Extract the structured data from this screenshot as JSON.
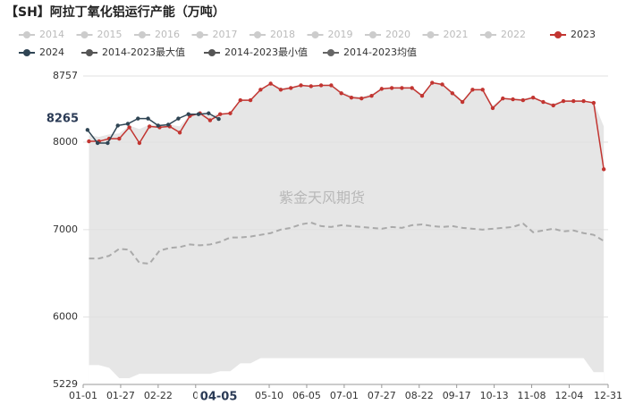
{
  "chart_data": {
    "type": "line",
    "title": "【SH】阿拉丁氧化铝运行产能（万吨）",
    "watermark": "紫金天风期货",
    "xlim": [
      0,
      364
    ],
    "xticks": [
      {
        "value": 0,
        "label": "01-01"
      },
      {
        "value": 26,
        "label": "01-27"
      },
      {
        "value": 52,
        "label": "02-22"
      },
      {
        "value": 78,
        "label": "0"
      },
      {
        "value": 129,
        "label": "05-10"
      },
      {
        "value": 155,
        "label": "06-05"
      },
      {
        "value": 181,
        "label": "07-01"
      },
      {
        "value": 207,
        "label": "07-27"
      },
      {
        "value": 233,
        "label": "08-22"
      },
      {
        "value": 259,
        "label": "09-17"
      },
      {
        "value": 285,
        "label": "10-13"
      },
      {
        "value": 311,
        "label": "11-08"
      },
      {
        "value": 337,
        "label": "12-04"
      },
      {
        "value": 364,
        "label": "12-31"
      }
    ],
    "ylim": [
      5229,
      8757
    ],
    "yticks": [
      5229,
      6000,
      7000,
      8000,
      8757
    ],
    "grid": true,
    "pointer": {
      "x": {
        "value": 94,
        "label": "04-05"
      },
      "y": 8265
    },
    "series": [
      {
        "name": "2014",
        "color": "#cccccc",
        "visible": false
      },
      {
        "name": "2015",
        "color": "#cccccc",
        "visible": false
      },
      {
        "name": "2016",
        "color": "#cccccc",
        "visible": false
      },
      {
        "name": "2017",
        "color": "#cccccc",
        "visible": false
      },
      {
        "name": "2018",
        "color": "#cccccc",
        "visible": false
      },
      {
        "name": "2019",
        "color": "#cccccc",
        "visible": false
      },
      {
        "name": "2020",
        "color": "#cccccc",
        "visible": false
      },
      {
        "name": "2021",
        "color": "#cccccc",
        "visible": false
      },
      {
        "name": "2022",
        "color": "#cccccc",
        "visible": false
      },
      {
        "name": "2023",
        "color": "#c23531",
        "style": "line",
        "x": [
          4,
          11,
          18,
          25,
          32,
          39,
          46,
          53,
          60,
          67,
          74,
          81,
          88,
          95,
          102,
          109,
          116,
          123,
          130,
          137,
          144,
          151,
          158,
          165,
          172,
          179,
          186,
          193,
          200,
          207,
          214,
          221,
          228,
          235,
          242,
          249,
          256,
          263,
          270,
          277,
          284,
          291,
          298,
          305,
          312,
          319,
          326,
          333,
          340,
          347,
          354,
          361
        ],
        "values": [
          8010,
          8010,
          8040,
          8040,
          8170,
          7990,
          8180,
          8170,
          8180,
          8110,
          8300,
          8330,
          8250,
          8320,
          8330,
          8480,
          8480,
          8600,
          8670,
          8600,
          8620,
          8650,
          8640,
          8650,
          8650,
          8560,
          8510,
          8500,
          8530,
          8610,
          8620,
          8620,
          8620,
          8530,
          8680,
          8660,
          8560,
          8460,
          8600,
          8600,
          8390,
          8500,
          8490,
          8480,
          8510,
          8460,
          8420,
          8470,
          8470,
          8470,
          8450,
          7690
        ]
      },
      {
        "name": "2024",
        "color": "#2f4554",
        "style": "line",
        "x": [
          3,
          10,
          17,
          24,
          31,
          38,
          45,
          52,
          59,
          66,
          73,
          80,
          87,
          94
        ],
        "values": [
          8140,
          7990,
          7990,
          8190,
          8210,
          8270,
          8270,
          8190,
          8200,
          8270,
          8320,
          8320,
          8330,
          8265
        ]
      },
      {
        "name": "2014-2023最大值",
        "color": "#555555",
        "style": "area-top",
        "fill": "#e6e6e6",
        "x": [
          4,
          11,
          18,
          25,
          32,
          39,
          46,
          53,
          60,
          67,
          74,
          81,
          88,
          95,
          102,
          109,
          116,
          123,
          130,
          137,
          144,
          151,
          158,
          165,
          172,
          179,
          186,
          193,
          200,
          207,
          214,
          221,
          228,
          235,
          242,
          249,
          256,
          263,
          270,
          277,
          284,
          291,
          298,
          305,
          312,
          319,
          326,
          333,
          340,
          347,
          354,
          361
        ],
        "values": [
          8080,
          8060,
          8090,
          8100,
          8190,
          8150,
          8200,
          8200,
          8200,
          8180,
          8310,
          8340,
          8300,
          8330,
          8340,
          8490,
          8490,
          8610,
          8680,
          8620,
          8630,
          8660,
          8650,
          8660,
          8660,
          8580,
          8530,
          8520,
          8550,
          8620,
          8630,
          8630,
          8630,
          8550,
          8690,
          8670,
          8580,
          8480,
          8610,
          8610,
          8420,
          8510,
          8500,
          8500,
          8520,
          8470,
          8440,
          8480,
          8480,
          8480,
          8460,
          8180
        ]
      },
      {
        "name": "2014-2023最小值",
        "color": "#555555",
        "style": "area-bottom",
        "fill": "#ffffff",
        "x": [
          4,
          11,
          18,
          25,
          32,
          39,
          46,
          53,
          60,
          67,
          74,
          81,
          88,
          95,
          102,
          109,
          116,
          123,
          130,
          137,
          144,
          151,
          158,
          165,
          172,
          179,
          186,
          193,
          200,
          207,
          214,
          221,
          228,
          235,
          242,
          249,
          256,
          263,
          270,
          277,
          284,
          291,
          298,
          305,
          312,
          319,
          326,
          333,
          340,
          347,
          354,
          361
        ],
        "values": [
          5450,
          5450,
          5420,
          5300,
          5300,
          5350,
          5350,
          5350,
          5350,
          5350,
          5350,
          5350,
          5350,
          5380,
          5380,
          5470,
          5470,
          5530,
          5530,
          5530,
          5530,
          5530,
          5530,
          5530,
          5530,
          5530,
          5530,
          5530,
          5530,
          5530,
          5530,
          5530,
          5530,
          5530,
          5530,
          5530,
          5530,
          5530,
          5530,
          5530,
          5530,
          5530,
          5530,
          5530,
          5530,
          5530,
          5530,
          5530,
          5530,
          5530,
          5370,
          5370
        ]
      },
      {
        "name": "2014-2023均值",
        "color": "#666666",
        "style": "dashed",
        "line_color": "#aaaaaa",
        "x": [
          4,
          11,
          18,
          25,
          32,
          39,
          46,
          53,
          60,
          67,
          74,
          81,
          88,
          95,
          102,
          109,
          116,
          123,
          130,
          137,
          144,
          151,
          158,
          165,
          172,
          179,
          186,
          193,
          200,
          207,
          214,
          221,
          228,
          235,
          242,
          249,
          256,
          263,
          270,
          277,
          284,
          291,
          298,
          305,
          312,
          319,
          326,
          333,
          340,
          347,
          354,
          361
        ],
        "values": [
          6670,
          6670,
          6700,
          6780,
          6770,
          6620,
          6610,
          6760,
          6790,
          6800,
          6830,
          6820,
          6830,
          6860,
          6910,
          6910,
          6920,
          6940,
          6960,
          7000,
          7020,
          7060,
          7080,
          7040,
          7030,
          7050,
          7040,
          7030,
          7020,
          7010,
          7030,
          7020,
          7050,
          7060,
          7040,
          7030,
          7040,
          7020,
          7010,
          7000,
          7010,
          7020,
          7030,
          7070,
          6970,
          6990,
          7010,
          6980,
          6990,
          6960,
          6940,
          6870
        ]
      }
    ]
  }
}
